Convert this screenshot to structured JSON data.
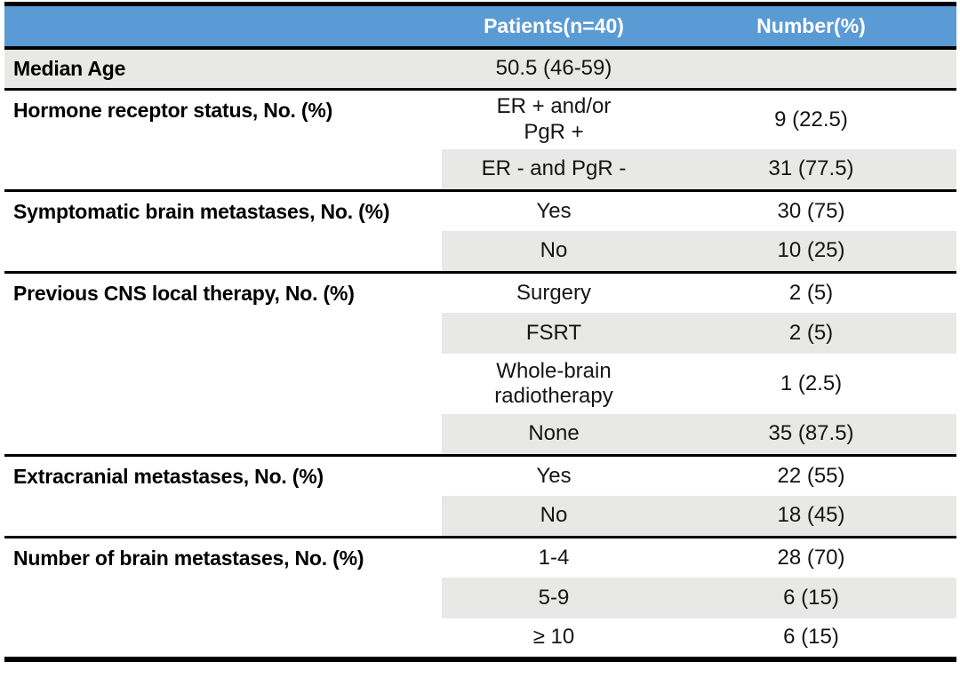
{
  "title": "Patient characteristics table",
  "colors": {
    "header_bg": "#5b9bd5",
    "header_text": "#ffffff",
    "shaded_row": "#e8e8e6",
    "border": "#000000",
    "text": "#151515"
  },
  "header": {
    "col1": "",
    "col2": "Patients(n=40)",
    "col3": "Number(%)"
  },
  "sections": [
    {
      "label": "Median Age",
      "label_shaded": true,
      "rows": [
        {
          "category": "50.5 (46-59)",
          "value": "",
          "shaded": true
        }
      ]
    },
    {
      "label": "Hormone receptor status, No. (%)",
      "label_shaded": false,
      "rows": [
        {
          "category": "ER + and/or\nPgR +",
          "value": "9 (22.5)",
          "shaded": false
        },
        {
          "category": "ER - and PgR -",
          "value": "31 (77.5)",
          "shaded": true
        }
      ]
    },
    {
      "label": "Symptomatic brain metastases, No. (%)",
      "label_shaded": false,
      "rows": [
        {
          "category": "Yes",
          "value": "30 (75)",
          "shaded": false
        },
        {
          "category": "No",
          "value": "10 (25)",
          "shaded": true
        }
      ]
    },
    {
      "label": "Previous CNS local therapy, No. (%)",
      "label_shaded": false,
      "rows": [
        {
          "category": "Surgery",
          "value": "2 (5)",
          "shaded": false
        },
        {
          "category": "FSRT",
          "value": "2 (5)",
          "shaded": true
        },
        {
          "category": "Whole-brain\nradiotherapy",
          "value": "1 (2.5)",
          "shaded": false
        },
        {
          "category": "None",
          "value": "35 (87.5)",
          "shaded": true
        }
      ]
    },
    {
      "label": "Extracranial metastases, No. (%)",
      "label_shaded": false,
      "rows": [
        {
          "category": "Yes",
          "value": "22 (55)",
          "shaded": false
        },
        {
          "category": "No",
          "value": "18 (45)",
          "shaded": true
        }
      ]
    },
    {
      "label": "Number of brain metastases, No. (%)",
      "label_shaded": false,
      "rows": [
        {
          "category": "1-4",
          "value": "28 (70)",
          "shaded": false
        },
        {
          "category": "5-9",
          "value": "6 (15)",
          "shaded": true
        },
        {
          "category": "≥ 10",
          "value": "6 (15)",
          "shaded": false
        }
      ]
    }
  ]
}
